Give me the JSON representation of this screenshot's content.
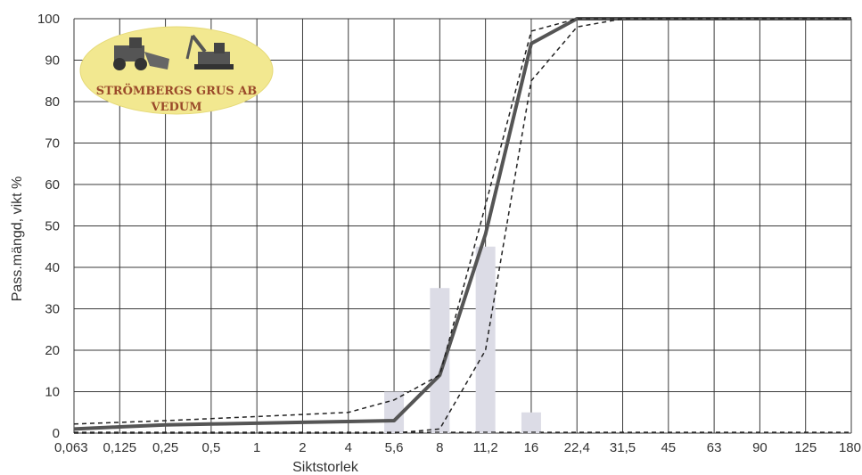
{
  "chart_data": {
    "type": "line",
    "xlabel": "Siktstorlek",
    "ylabel": "Pass.mängd, vikt %",
    "categories": [
      "0,063",
      "0,125",
      "0,25",
      "0,5",
      "1",
      "2",
      "4",
      "5,6",
      "8",
      "11,2",
      "16",
      "22,4",
      "31,5",
      "45",
      "63",
      "90",
      "125",
      "180"
    ],
    "ylim": [
      0,
      100
    ],
    "yticks": [
      0,
      10,
      20,
      30,
      40,
      50,
      60,
      70,
      80,
      90,
      100
    ],
    "grid": true,
    "series": [
      {
        "role": "main",
        "color": "#555555",
        "values": [
          1,
          1.5,
          2,
          2.2,
          2.4,
          2.6,
          2.8,
          3,
          14,
          48,
          94,
          100,
          100,
          100,
          100,
          100,
          100,
          100
        ]
      },
      {
        "role": "upper-limit",
        "color": "#222222",
        "values": [
          2.2,
          2.6,
          3,
          3.5,
          4,
          4.5,
          5,
          8,
          14,
          55,
          97,
          100,
          100,
          100,
          100,
          100,
          100,
          100
        ]
      },
      {
        "role": "lower-limit",
        "color": "#222222",
        "values": [
          0,
          0,
          0,
          0,
          0,
          0,
          0,
          0,
          1,
          20,
          85,
          98,
          100,
          100,
          100,
          100,
          100,
          100
        ]
      }
    ],
    "bars": {
      "color": "#dcdce6",
      "values": [
        0,
        0,
        0,
        0,
        0,
        0,
        0,
        10,
        35,
        45,
        5,
        0,
        0,
        0,
        0,
        0,
        0,
        0
      ]
    }
  },
  "logo": {
    "line1": "STRÖMBERGS GRUS AB",
    "line2": "VEDUM",
    "fill": "#f2e890"
  }
}
